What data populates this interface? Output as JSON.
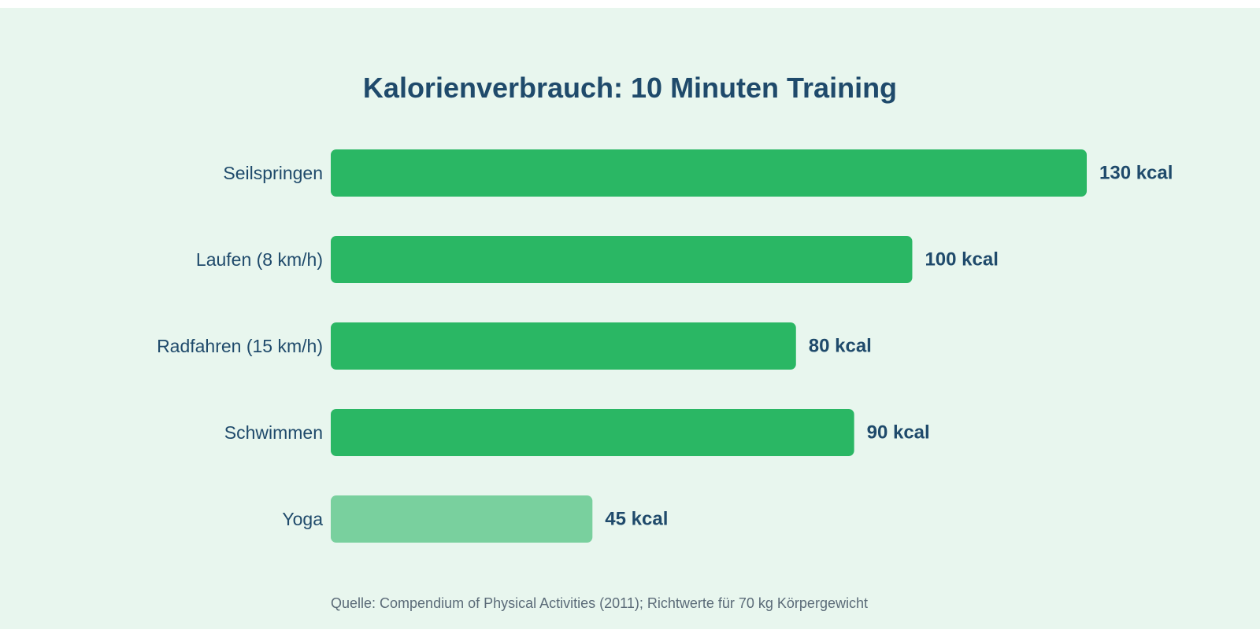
{
  "chart_data": {
    "type": "bar",
    "orientation": "horizontal",
    "title": "Kalorienverbrauch: 10 Minuten Training",
    "categories": [
      "Seilspringen",
      "Laufen (8 km/h)",
      "Radfahren (15 km/h)",
      "Schwimmen",
      "Yoga"
    ],
    "values": [
      130,
      100,
      80,
      90,
      45
    ],
    "value_labels": [
      "130 kcal",
      "100 kcal",
      "80 kcal",
      "90 kcal",
      "45 kcal"
    ],
    "unit": "kcal",
    "xlim": [
      0,
      130
    ],
    "grid": false,
    "bar_colors": [
      "#2ab764",
      "#2ab764",
      "#2ab764",
      "#2ab764",
      "#79d09e"
    ],
    "source": "Quelle: Compendium of Physical Activities (2011); Richtwerte für 70 kg Körpergewicht"
  },
  "colors": {
    "background": "#e8f6ee",
    "text": "#1f4a6b",
    "source_text": "#5b6b78"
  }
}
